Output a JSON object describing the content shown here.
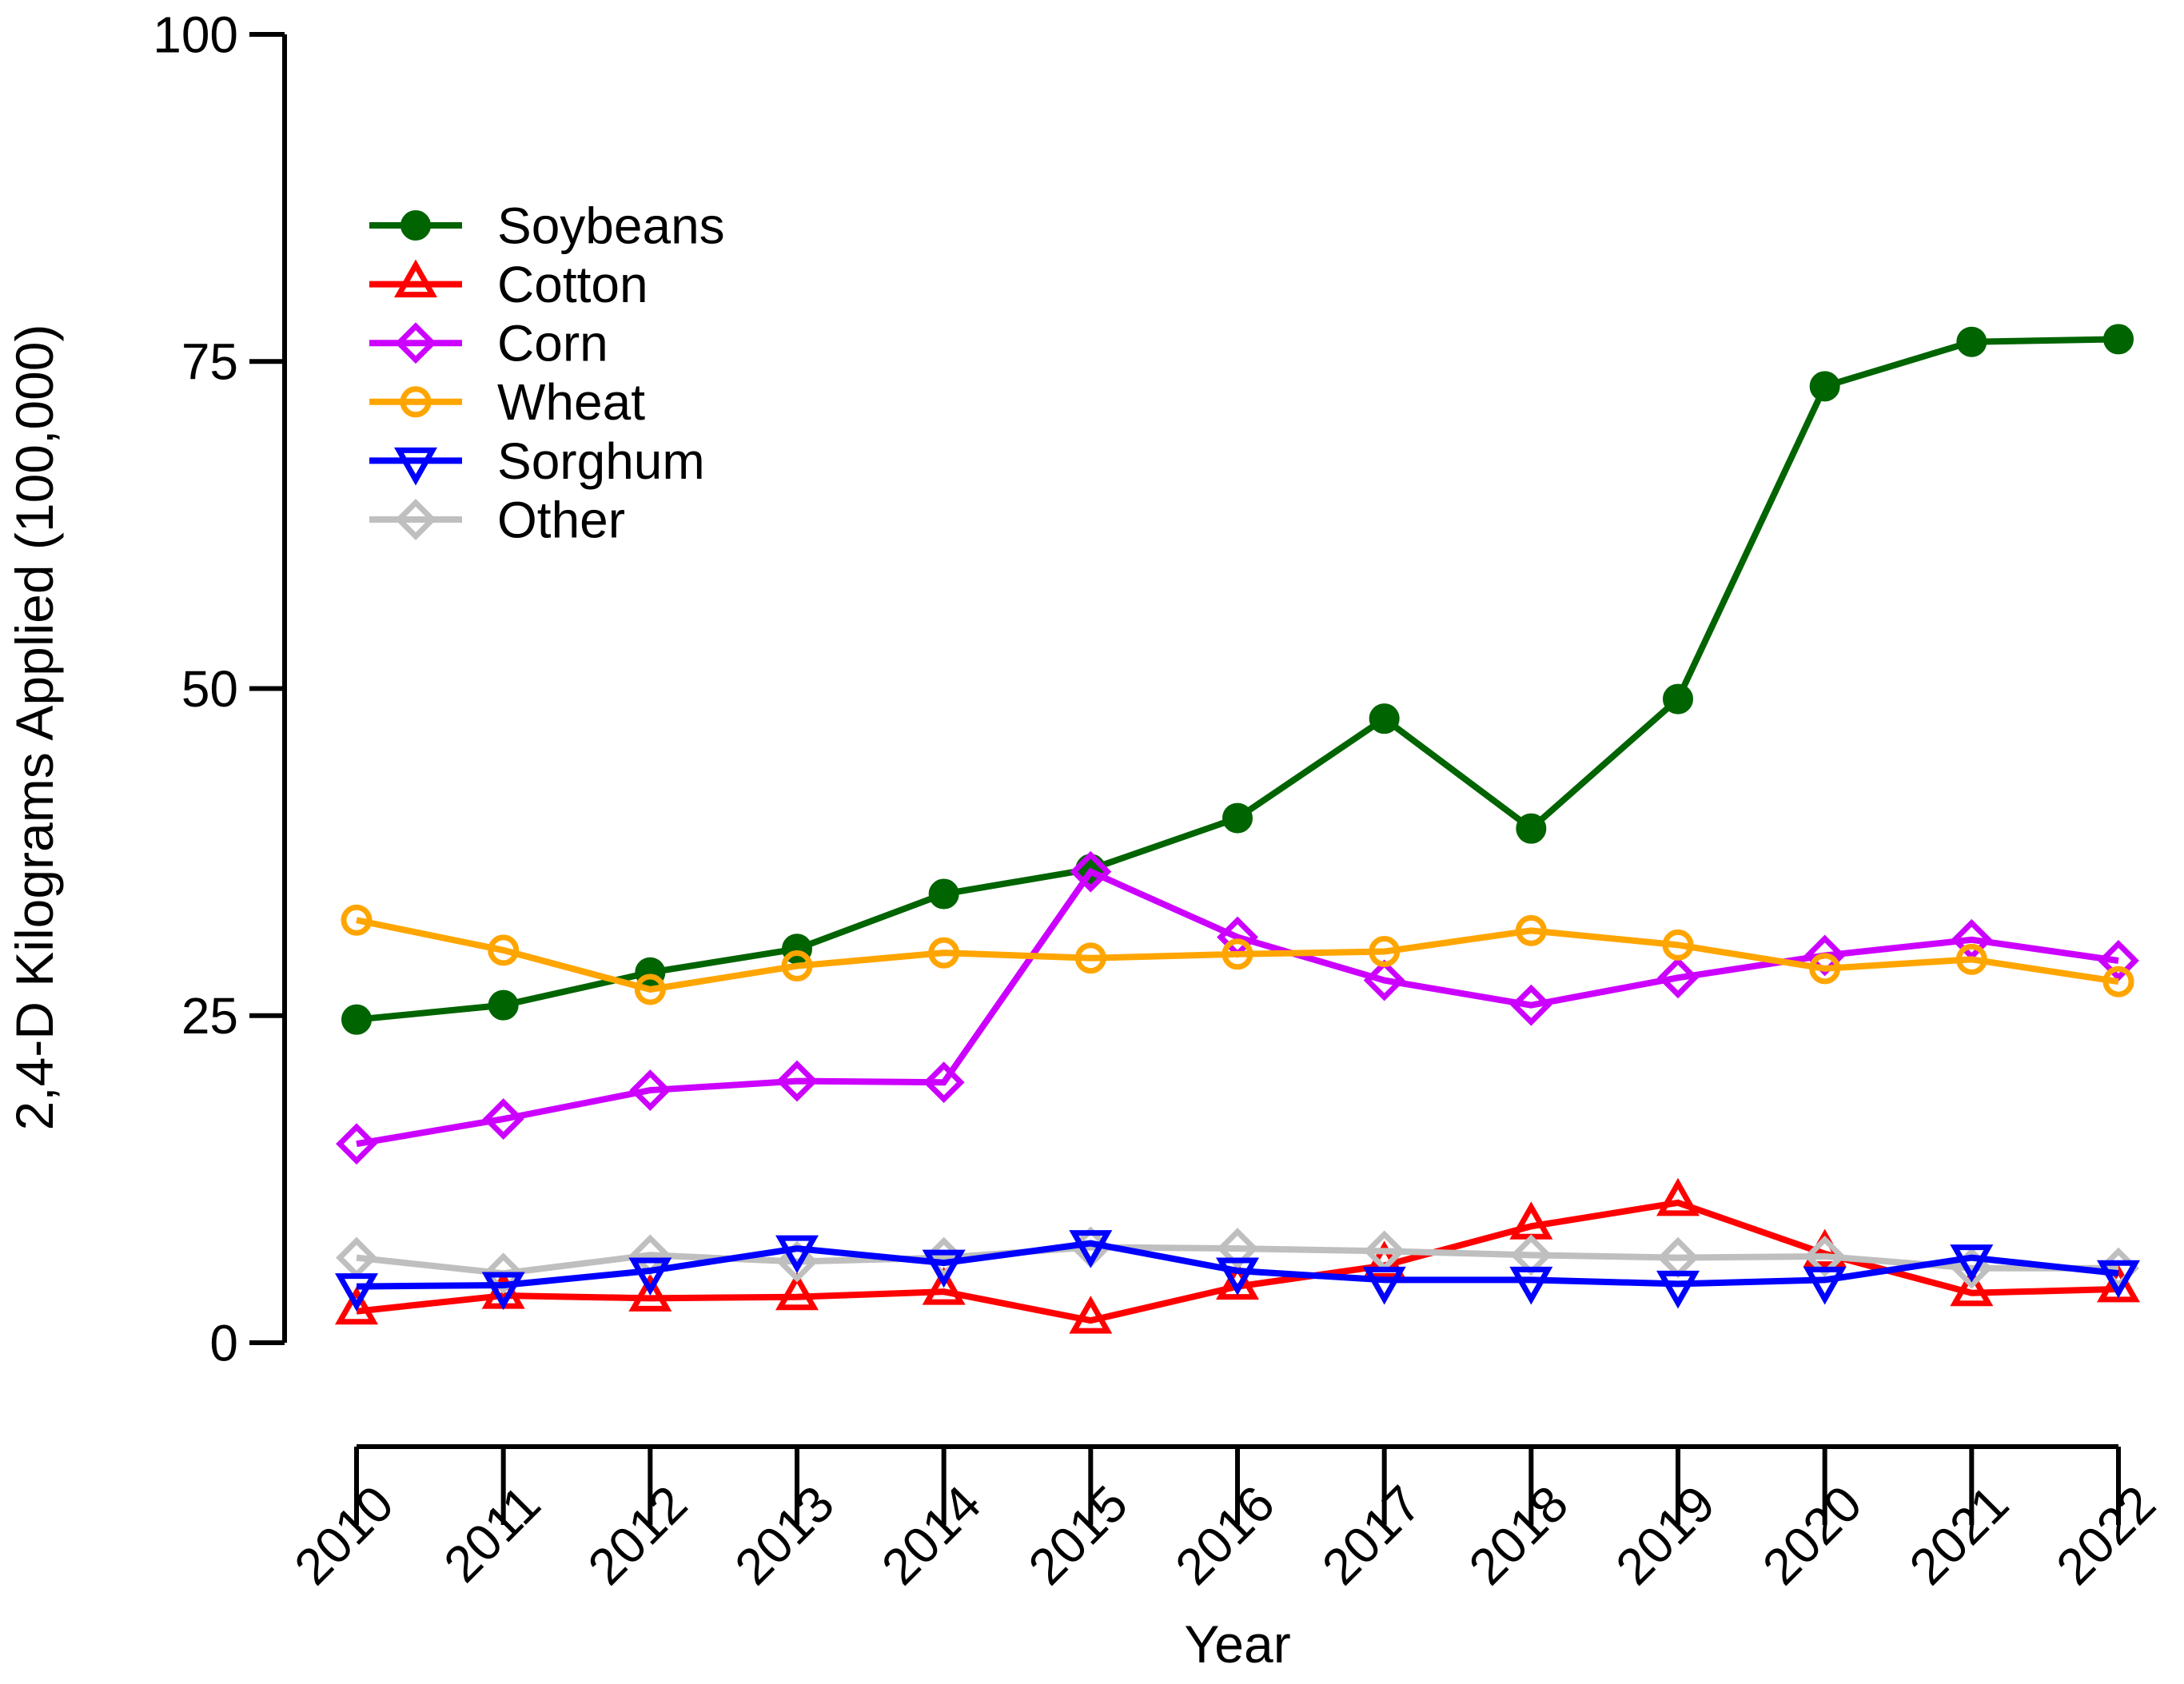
{
  "chart_data": {
    "type": "line",
    "x": [
      2010,
      2011,
      2012,
      2013,
      2014,
      2015,
      2016,
      2017,
      2018,
      2019,
      2020,
      2021,
      2022
    ],
    "xlabel": "Year",
    "ylabel": "2,4-D Kilograms Applied (100,000)",
    "ylim": [
      0,
      100
    ],
    "yticks": [
      0,
      25,
      50,
      75,
      100
    ],
    "grid": false,
    "legend_position": "top-left",
    "axis_color": "#000000",
    "background_color": "#ffffff",
    "series": [
      {
        "name": "Soybeans",
        "color": "#006400",
        "marker": "filled-circle",
        "values": [
          24.7,
          25.8,
          28.3,
          30.1,
          34.3,
          36.2,
          40.1,
          47.7,
          39.3,
          49.2,
          73.1,
          76.5,
          76.7
        ]
      },
      {
        "name": "Cotton",
        "color": "#FF0000",
        "marker": "open-triangle-up",
        "values": [
          2.4,
          3.6,
          3.4,
          3.5,
          3.9,
          1.7,
          4.3,
          5.9,
          8.9,
          10.7,
          6.8,
          3.8,
          4.1
        ]
      },
      {
        "name": "Corn",
        "color": "#CC00FF",
        "marker": "open-diamond",
        "values": [
          15.2,
          17.1,
          19.3,
          20.0,
          19.9,
          36.0,
          31.0,
          27.7,
          25.8,
          27.9,
          29.6,
          30.8,
          29.2
        ]
      },
      {
        "name": "Wheat",
        "color": "#FFA500",
        "marker": "open-circle",
        "values": [
          32.3,
          30.0,
          27.0,
          28.8,
          29.8,
          29.4,
          29.7,
          29.9,
          31.5,
          30.4,
          28.6,
          29.3,
          27.6
        ]
      },
      {
        "name": "Sorghum",
        "color": "#0000FF",
        "marker": "open-triangle-down",
        "values": [
          4.3,
          4.4,
          5.5,
          7.2,
          6.1,
          7.6,
          5.5,
          4.8,
          4.8,
          4.5,
          4.8,
          6.5,
          5.3
        ]
      },
      {
        "name": "Other",
        "color": "#BFBFBF",
        "marker": "open-diamond",
        "values": [
          6.5,
          5.3,
          6.7,
          6.2,
          6.5,
          7.3,
          7.2,
          7.0,
          6.7,
          6.5,
          6.6,
          5.7,
          5.7
        ]
      }
    ],
    "draw_order": [
      "Soybeans",
      "Cotton",
      "Corn",
      "Wheat",
      "Other",
      "Sorghum"
    ]
  }
}
